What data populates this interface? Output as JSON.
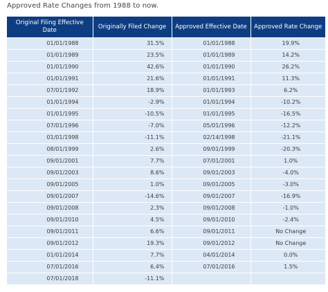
{
  "caption": "Approved Rate Changes from 1988 to now.",
  "table": {
    "headers": [
      "Original Filing Effective Date",
      "Originally Filed Change",
      "Approved Effective Date",
      "Approved Rate Change"
    ],
    "rows": [
      [
        "01/01/1988",
        "31.5%",
        "01/01/1988",
        "19.9%"
      ],
      [
        "01/01/1989",
        "23.5%",
        "01/01/1989",
        "14.2%"
      ],
      [
        "01/01/1990",
        "42.6%",
        "01/01/1990",
        "26.2%"
      ],
      [
        "01/01/1991",
        "21.6%",
        "01/01/1991",
        "11.3%"
      ],
      [
        "07/01/1992",
        "18.9%",
        "01/01/1993",
        "6.2%"
      ],
      [
        "01/01/1994",
        "-2.9%",
        "01/01/1994",
        "-10.2%"
      ],
      [
        "01/01/1995",
        "-10.5%",
        "01/01/1995",
        "-16.5%"
      ],
      [
        "07/01/1996",
        "-7.0%",
        "05/01/1996",
        "-12.2%"
      ],
      [
        "01/01/1998",
        "-11.1%",
        "02/14/1998",
        "-21.1%"
      ],
      [
        "08/01/1999",
        "2.6%",
        "09/01/1999",
        "-20.3%"
      ],
      [
        "09/01/2001",
        "7.7%",
        "07/01/2001",
        "1.0%"
      ],
      [
        "09/01/2003",
        "8.6%",
        "09/01/2003",
        "-4.0%"
      ],
      [
        "09/01/2005",
        "1.0%",
        "09/01/2005",
        "-3.0%"
      ],
      [
        "09/01/2007",
        "-14.6%",
        "09/01/2007",
        "-16.9%"
      ],
      [
        "09/01/2008",
        "2.3%",
        "09/01/2008",
        "-1.0%"
      ],
      [
        "09/01/2010",
        "4.5%",
        "09/01/2010",
        "-2.4%"
      ],
      [
        "09/01/2011",
        "6.6%",
        "09/01/2011",
        "No Change"
      ],
      [
        "09/01/2012",
        "19.3%",
        "09/01/2012",
        "No Change"
      ],
      [
        "01/01/2014",
        "7.7%",
        "04/01/2014",
        "0.0%"
      ],
      [
        "07/01/2016",
        "6.4%",
        "07/01/2016",
        "1.5%"
      ],
      [
        "07/01/2018",
        "-11.1%",
        "",
        ""
      ]
    ]
  },
  "colors": {
    "header_bg": "#0f3d82",
    "row_bg": "#dce8f5"
  }
}
